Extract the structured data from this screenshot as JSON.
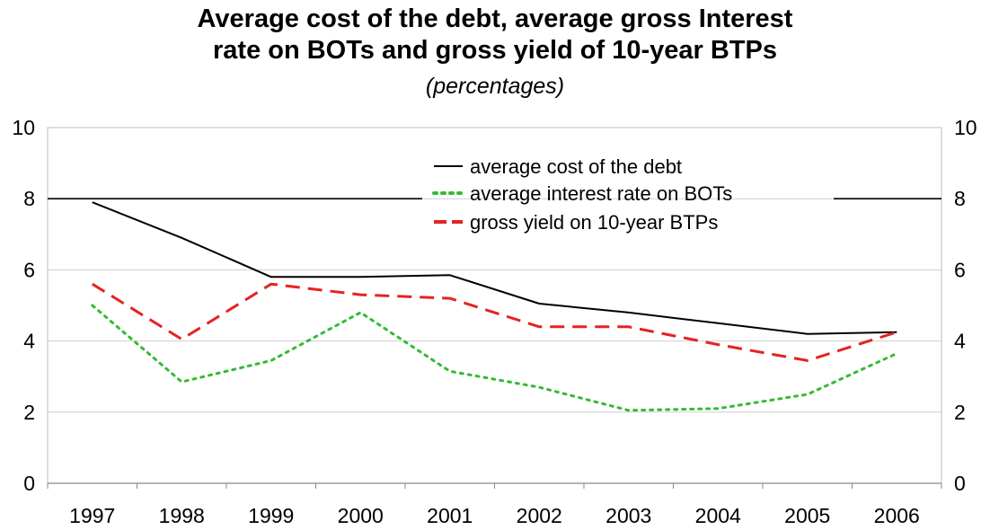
{
  "chart_data": {
    "type": "line",
    "title_line1": "Average cost of the debt, average gross Interest",
    "title_line2": "rate on BOTs and gross yield of 10-year BTPs",
    "subtitle": "(percentages)",
    "x": [
      "1997",
      "1998",
      "1999",
      "2000",
      "2001",
      "2002",
      "2003",
      "2004",
      "2005",
      "2006"
    ],
    "ylim": [
      0,
      10
    ],
    "yticks": [
      "0",
      "2",
      "4",
      "6",
      "8",
      "10"
    ],
    "grid": true,
    "legend_position": "top-right",
    "series": [
      {
        "name": "average cost of the debt",
        "color": "#000000",
        "style": "solid",
        "values": [
          7.9,
          6.9,
          5.8,
          5.8,
          5.85,
          5.05,
          4.8,
          4.5,
          4.2,
          4.25
        ]
      },
      {
        "name": "average interest rate on BOTs",
        "color": "#33bb33",
        "style": "dotted",
        "values": [
          5.0,
          2.85,
          3.45,
          4.8,
          3.15,
          2.7,
          2.05,
          2.1,
          2.5,
          3.65
        ]
      },
      {
        "name": "gross yield on 10-year BTPs",
        "color": "#e52222",
        "style": "dashed",
        "values": [
          5.6,
          4.05,
          5.6,
          5.3,
          5.2,
          4.4,
          4.4,
          3.9,
          3.45,
          4.25
        ]
      }
    ],
    "reference_line": 8
  }
}
